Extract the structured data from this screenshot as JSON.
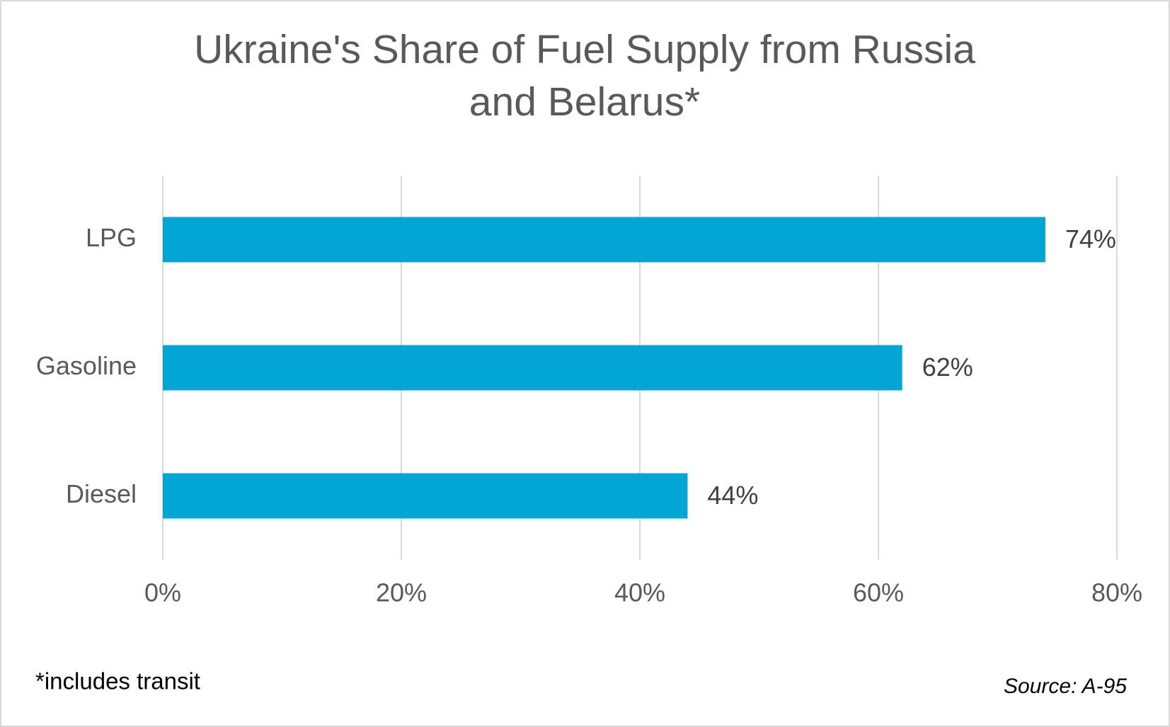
{
  "chart_data": {
    "type": "bar",
    "orientation": "horizontal",
    "title": [
      "Ukraine's Share of Fuel Supply from Russia",
      "and Belarus*"
    ],
    "categories": [
      "LPG",
      "Gasoline",
      "Diesel"
    ],
    "values": [
      74,
      62,
      44
    ],
    "value_labels": [
      "74%",
      "62%",
      "44%"
    ],
    "color": "#03a5d5",
    "xlim": [
      0,
      80
    ],
    "xticks": [
      {
        "value": 0,
        "label": "0%"
      },
      {
        "value": 20,
        "label": "20%"
      },
      {
        "value": 40,
        "label": "40%"
      },
      {
        "value": 60,
        "label": "60%"
      },
      {
        "value": 80,
        "label": "80%"
      }
    ],
    "grid": true,
    "note": "*includes transit",
    "source": "Source: A-95"
  }
}
